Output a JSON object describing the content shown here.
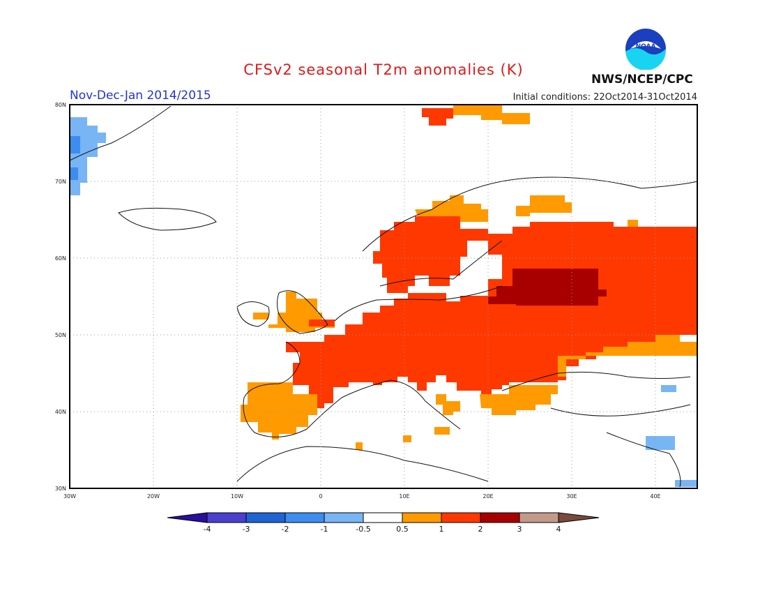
{
  "header": {
    "title": "CFSv2 seasonal T2m anomalies (K)",
    "period": "Nov-Dec-Jan 2014/2015",
    "initial_conditions": "Initial conditions: 22Oct2014-31Oct2014",
    "organization": "NWS/NCEP/CPC",
    "logo_text": "NOAA"
  },
  "map": {
    "lon_range": [
      -30,
      45
    ],
    "lat_range": [
      30,
      80
    ],
    "lat_ticks": [
      "30N",
      "40N",
      "50N",
      "60N",
      "70N",
      "80N"
    ],
    "lon_ticks": [
      "30W",
      "20W",
      "10W",
      "0",
      "10E",
      "20E",
      "30E",
      "40E"
    ]
  },
  "colorbar": {
    "labels": [
      "-4",
      "-3",
      "-2",
      "-1",
      "-0.5",
      "0.5",
      "1",
      "2",
      "3",
      "4"
    ],
    "colors": [
      "#2a0f9e",
      "#4a3fcf",
      "#1f63d4",
      "#3d8cf0",
      "#78b5f5",
      "#ffffff",
      "#ff9a00",
      "#ff3800",
      "#a80000",
      "#c39a8a",
      "#7a4a3a"
    ]
  }
}
